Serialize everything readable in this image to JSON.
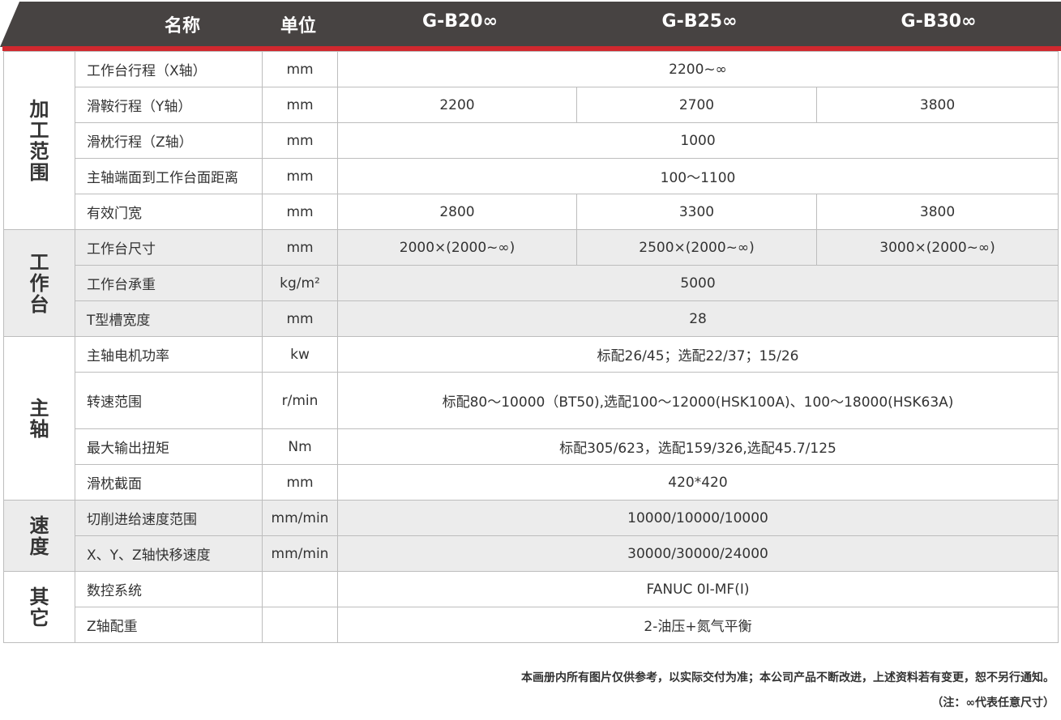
{
  "header": {
    "name": "名称",
    "unit": "单位",
    "models": [
      "G-B20∞",
      "G-B25∞",
      "G-B30∞"
    ]
  },
  "colors": {
    "header_bg": "#474342",
    "accent": "#d0282e",
    "shade": "#ececec"
  },
  "groups": [
    {
      "label": "加\n工\n范\n围",
      "shaded": false,
      "rows": [
        {
          "name": "工作台行程（X轴）",
          "unit": "mm",
          "values": [
            "2200~∞"
          ]
        },
        {
          "name": "滑鞍行程（Y轴）",
          "unit": "mm",
          "values": [
            "2200",
            "2700",
            "3800"
          ]
        },
        {
          "name": "滑枕行程（Z轴）",
          "unit": "mm",
          "values": [
            "1000"
          ]
        },
        {
          "name": "主轴端面到工作台面距离",
          "unit": "mm",
          "values": [
            "100～1100"
          ]
        },
        {
          "name": "有效门宽",
          "unit": "mm",
          "values": [
            "2800",
            "3300",
            "3800"
          ]
        }
      ]
    },
    {
      "label": "工\n作\n台",
      "shaded": true,
      "rows": [
        {
          "name": "工作台尺寸",
          "unit": "mm",
          "values": [
            "2000×(2000~∞)",
            "2500×(2000~∞)",
            "3000×(2000~∞)"
          ]
        },
        {
          "name": "工作台承重",
          "unit": "kg/m²",
          "values": [
            "5000"
          ]
        },
        {
          "name": "T型槽宽度",
          "unit": "mm",
          "values": [
            "28"
          ]
        }
      ]
    },
    {
      "label": "主\n轴",
      "shaded": false,
      "rows": [
        {
          "name": "主轴电机功率",
          "unit": "kw",
          "values": [
            "标配26/45；选配22/37；15/26"
          ]
        },
        {
          "name": "转速范围",
          "unit": "r/min",
          "values": [
            "标配80～10000（BT50),选配100～12000(HSK100A)、100～18000(HSK63A)"
          ],
          "tall": true
        },
        {
          "name": "最大输出扭矩",
          "unit": "Nm",
          "values": [
            "标配305/623，选配159/326,选配45.7/125"
          ]
        },
        {
          "name": "滑枕截面",
          "unit": "mm",
          "values": [
            "420*420"
          ]
        }
      ]
    },
    {
      "label": "速\n度",
      "shaded": true,
      "rows": [
        {
          "name": "切削进给速度范围",
          "unit": "mm/min",
          "values": [
            "10000/10000/10000"
          ]
        },
        {
          "name": "X、Y、Z轴快移速度",
          "unit": "mm/min",
          "values": [
            "30000/30000/24000"
          ]
        }
      ]
    },
    {
      "label": "其\n它",
      "shaded": false,
      "rows": [
        {
          "name": "数控系统",
          "unit": "",
          "values": [
            "FANUC 0I-MF(I)"
          ]
        },
        {
          "name": "Z轴配重",
          "unit": "",
          "values": [
            "2-油压+氮气平衡"
          ]
        }
      ]
    }
  ],
  "notes": [
    "本画册内所有图片仅供参考，以实际交付为准；本公司产品不断改进，上述资料若有变更，恕不另行通知。",
    "（注：∞代表任意尺寸）"
  ]
}
